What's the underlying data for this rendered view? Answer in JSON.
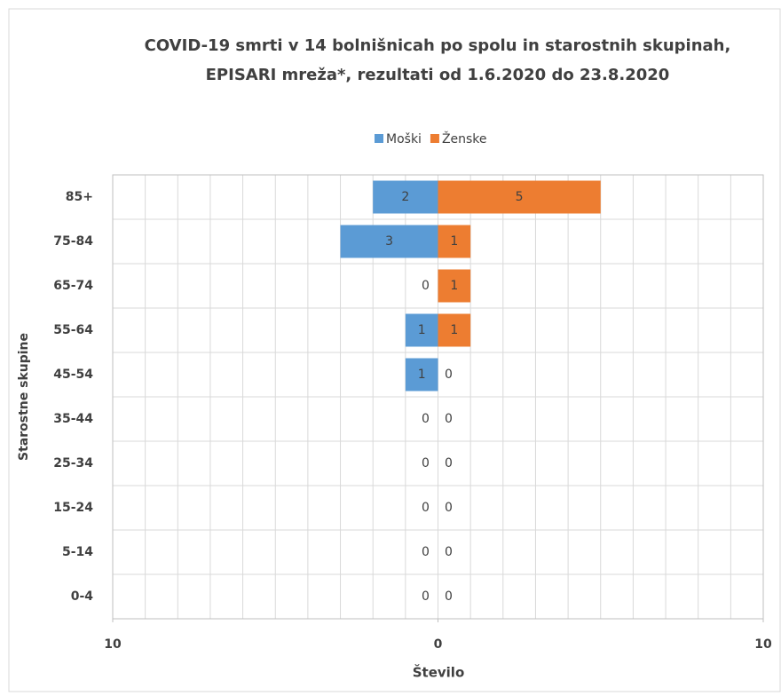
{
  "chart_data": {
    "type": "bar",
    "orientation": "horizontal",
    "title": [
      "COVID-19 smrti v 14 bolnišnicah po spolu in starostnih skupinah,",
      "EPISARI mreža*, rezultati od 1.6.2020 do 23.8.2020"
    ],
    "categories": [
      "85+",
      "75-84",
      "65-74",
      "55-64",
      "45-54",
      "35-44",
      "25-34",
      "15-24",
      "5-14",
      "0-4"
    ],
    "series": [
      {
        "name": "Moški",
        "color": "#5b9bd5",
        "values": [
          -2,
          -3,
          0,
          -1,
          -1,
          0,
          0,
          0,
          0,
          0
        ],
        "value_labels": [
          "2",
          "3",
          "0",
          "1",
          "1",
          "0",
          "0",
          "0",
          "0",
          "0"
        ]
      },
      {
        "name": "Ženske",
        "color": "#ed7d31",
        "values": [
          5,
          1,
          1,
          1,
          0,
          0,
          0,
          0,
          0,
          0
        ]
      }
    ],
    "xlim": [
      -10,
      10
    ],
    "xticks": [
      {
        "value": -10,
        "label": "10"
      },
      0,
      10
    ],
    "xgrid": [
      -10,
      -9,
      -8,
      -7,
      -6,
      -5,
      -4,
      -3,
      -2,
      -1,
      0,
      1,
      2,
      3,
      4,
      5,
      6,
      7,
      8,
      9,
      10
    ],
    "xlabel": "Število",
    "ylabel": "Starostne skupine",
    "legend": "top"
  }
}
